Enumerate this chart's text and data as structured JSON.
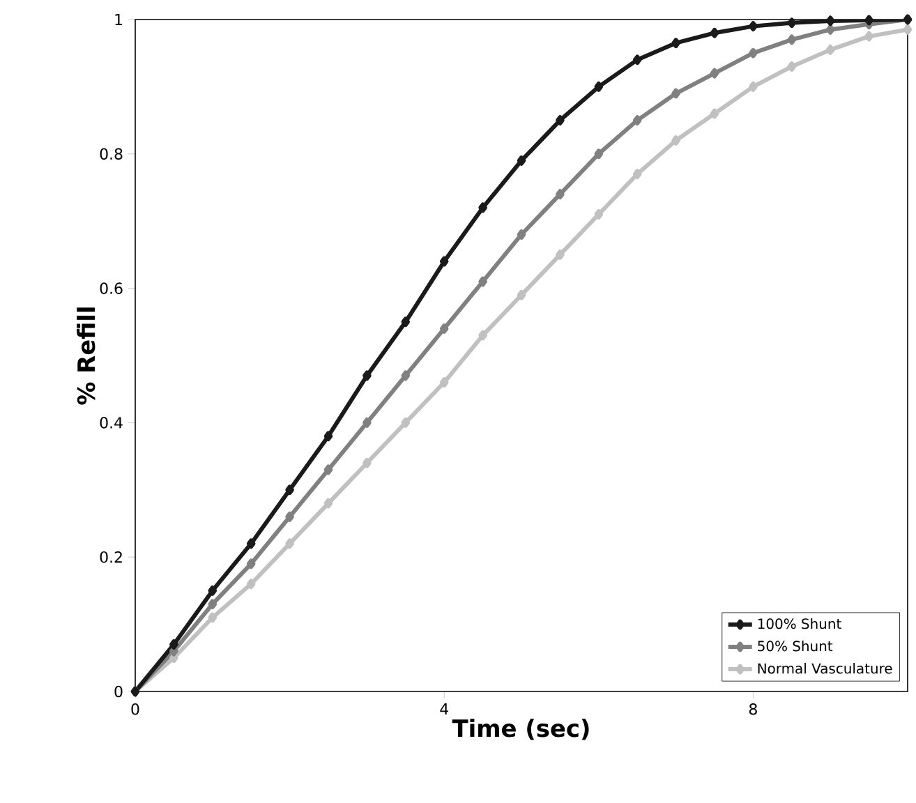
{
  "chart_data": {
    "type": "line",
    "xlabel": "Time (sec)",
    "ylabel": "% Refill",
    "xlim": [
      0,
      10
    ],
    "ylim": [
      0,
      1
    ],
    "xticks": [
      0,
      4,
      8
    ],
    "yticks": [
      0,
      0.2,
      0.4,
      0.6,
      0.8,
      1
    ],
    "grid": false,
    "legend": "bottom right",
    "marker": "diamond",
    "line_style": "solid",
    "x": [
      0,
      0.5,
      1,
      1.5,
      2,
      2.5,
      3,
      3.5,
      4,
      4.5,
      5,
      5.5,
      6,
      6.5,
      7,
      7.5,
      8,
      8.5,
      9,
      9.5,
      10
    ],
    "series": [
      {
        "name": "100% Shunt",
        "color": "#1a1a1a",
        "values": [
          0,
          0.07,
          0.15,
          0.22,
          0.3,
          0.38,
          0.47,
          0.55,
          0.64,
          0.72,
          0.79,
          0.85,
          0.9,
          0.94,
          0.965,
          0.98,
          0.99,
          0.995,
          0.998,
          0.999,
          1
        ]
      },
      {
        "name": "50% Shunt",
        "color": "#808080",
        "values": [
          0,
          0.06,
          0.13,
          0.19,
          0.26,
          0.33,
          0.4,
          0.47,
          0.54,
          0.61,
          0.68,
          0.74,
          0.8,
          0.85,
          0.89,
          0.92,
          0.95,
          0.97,
          0.985,
          0.993,
          1
        ]
      },
      {
        "name": "Normal Vasculature",
        "color": "#c0c0c0",
        "values": [
          0,
          0.05,
          0.11,
          0.16,
          0.22,
          0.28,
          0.34,
          0.4,
          0.46,
          0.53,
          0.59,
          0.65,
          0.71,
          0.77,
          0.82,
          0.86,
          0.9,
          0.93,
          0.955,
          0.975,
          0.985
        ]
      }
    ]
  }
}
